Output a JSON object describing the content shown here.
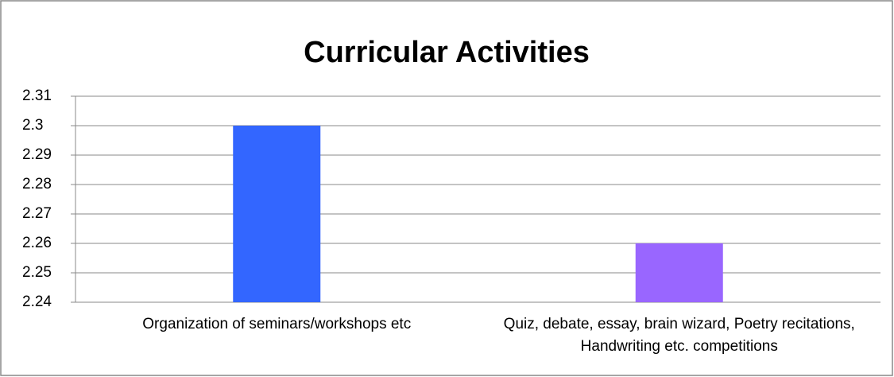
{
  "chart_data": {
    "type": "bar",
    "title": "Curricular Activities",
    "categories": [
      "Organization of seminars/workshops etc",
      "Quiz, debate, essay, brain wizard, Poetry recitations, Handwriting etc. competitions"
    ],
    "values": [
      2.3,
      2.26
    ],
    "colors": [
      "#3366ff",
      "#9966ff"
    ],
    "ylim": [
      2.24,
      2.31
    ],
    "yticks": [
      2.24,
      2.25,
      2.26,
      2.27,
      2.28,
      2.29,
      2.3,
      2.31
    ],
    "grid": true
  }
}
